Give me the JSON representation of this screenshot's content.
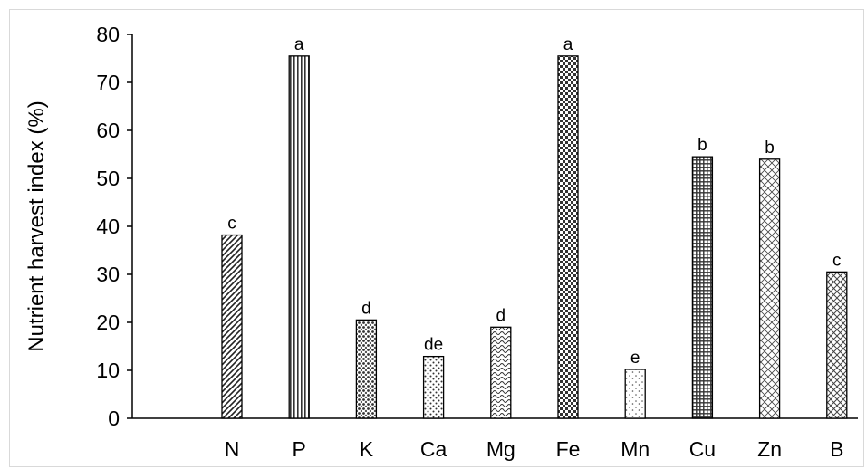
{
  "chart_data": {
    "type": "bar",
    "title": "",
    "xlabel": "",
    "ylabel": "Nutrient harvest index (%)",
    "ylim": [
      0,
      80
    ],
    "yticks": [
      0,
      10,
      20,
      30,
      40,
      50,
      60,
      70,
      80
    ],
    "categories": [
      "N",
      "P",
      "K",
      "Ca",
      "Mg",
      "Fe",
      "Mn",
      "Cu",
      "Zn",
      "B"
    ],
    "values": [
      38.2,
      75.5,
      20.5,
      12.9,
      19.0,
      75.5,
      10.2,
      54.5,
      54.0,
      30.5
    ],
    "significance_letters": [
      "c",
      "a",
      "d",
      "de",
      "d",
      "a",
      "e",
      "b",
      "b",
      "c"
    ],
    "patterns": [
      "diagonal-stripes",
      "vertical-stripes",
      "dots-dense",
      "dots-sparse",
      "waves",
      "checkerboard",
      "dots-light",
      "grid-dense",
      "crosshatch-diagonal",
      "lattice"
    ],
    "grid": false,
    "legend": "none"
  }
}
